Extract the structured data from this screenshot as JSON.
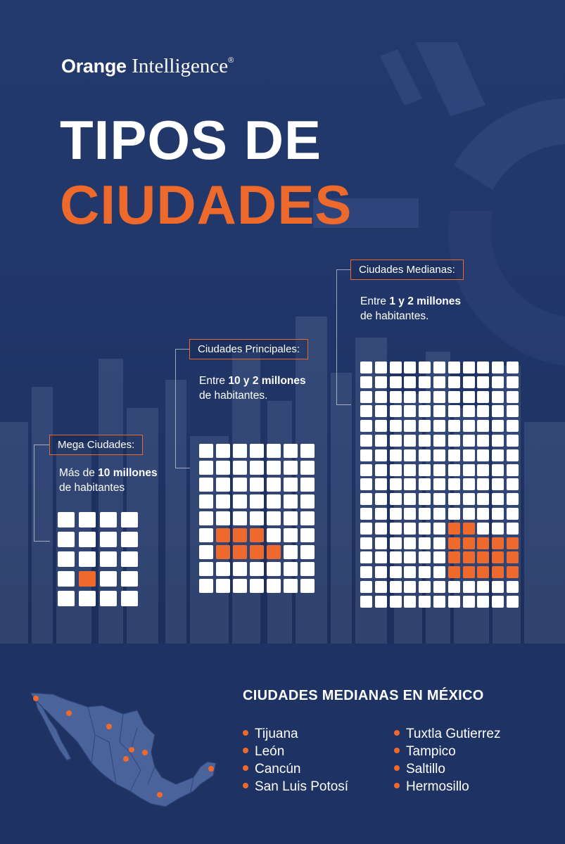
{
  "brand": {
    "name": "Orange",
    "suffix": "Intelligence",
    "mark": "®"
  },
  "title": {
    "line1": "TIPOS DE",
    "line2": "CIUDADES"
  },
  "colors": {
    "background": "#1d3060",
    "accent": "#ee6a2c",
    "text": "#ffffff"
  },
  "groups": [
    {
      "label": "Mega Ciudades:",
      "desc_pre": "Más de ",
      "desc_bold": "10 millones",
      "desc_post": "",
      "desc_line2": "de habitantes",
      "grid": {
        "cols": 4,
        "rows": 5,
        "highlighted": 1
      }
    },
    {
      "label": "Ciudades Principales:",
      "desc_pre": "Entre ",
      "desc_bold": "10 y 2 millones",
      "desc_post": "",
      "desc_line2": "de habitantes.",
      "grid": {
        "cols": 7,
        "rows": 9,
        "highlighted": 7
      }
    },
    {
      "label": "Ciudades Medianas:",
      "desc_pre": "Entre ",
      "desc_bold": "1 y 2 millones",
      "desc_post": "",
      "desc_line2": "de habitantes.",
      "grid": {
        "cols": 11,
        "rows": 17,
        "highlighted": 21
      }
    }
  ],
  "mexico": {
    "title": "CIUDADES MEDIANAS EN MÉXICO",
    "col1": [
      "Tijuana",
      "León",
      "Cancún",
      "San Luis Potosí"
    ],
    "col2": [
      "Tuxtla Gutierrez",
      "Tampico",
      "Saltillo",
      "Hermosillo"
    ]
  }
}
